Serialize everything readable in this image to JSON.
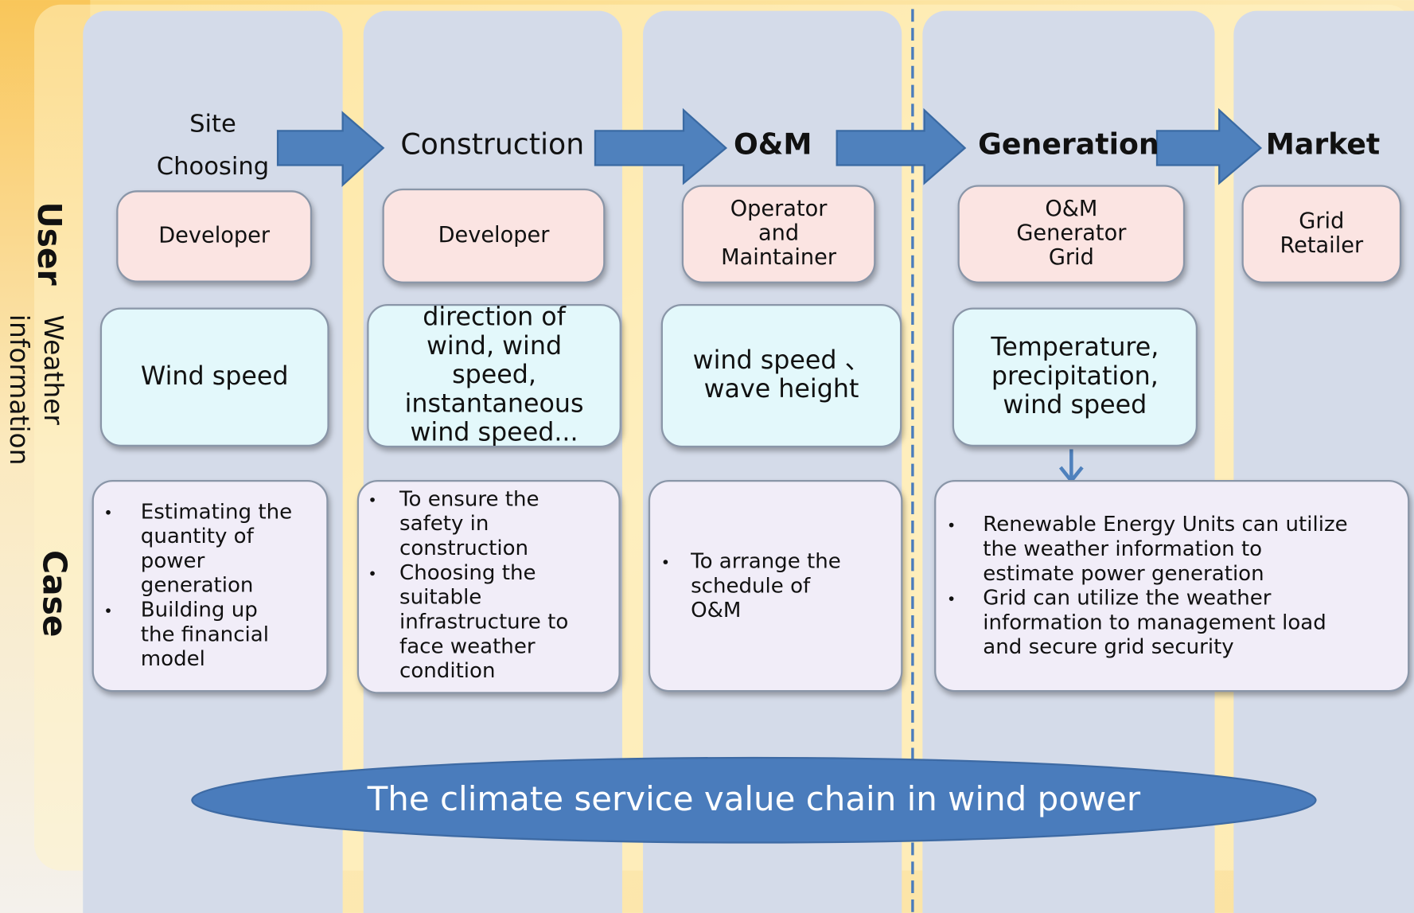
{
  "row_labels": {
    "user": "User",
    "weather": [
      "Weather",
      "information"
    ],
    "case": "Case"
  },
  "stages": [
    [
      "Site",
      "Choosing"
    ],
    [
      "Construction"
    ],
    [
      "O&M"
    ],
    [
      "Generation"
    ],
    [
      "Market"
    ]
  ],
  "users": [
    [
      "Developer"
    ],
    [
      "Developer"
    ],
    [
      "Operator",
      "and",
      "Maintainer"
    ],
    [
      "O&M",
      "Generator",
      "Grid"
    ],
    [
      "Grid",
      "Retailer"
    ]
  ],
  "weather": [
    [
      "Wind speed"
    ],
    [
      "direction of",
      "wind, wind",
      "speed,",
      "instantaneous",
      "wind speed..."
    ],
    [
      "wind speed 、",
      "wave height"
    ],
    [
      "Temperature,",
      "precipitation,",
      "wind speed"
    ]
  ],
  "cases": [
    [
      [
        "Estimating the",
        "quantity of",
        "power",
        "generation"
      ],
      [
        "Building up",
        "the financial",
        "model"
      ]
    ],
    [
      [
        "To ensure the",
        "safety in",
        "construction"
      ],
      [
        "Choosing the",
        "suitable",
        "infrastructure to",
        "face weather",
        "condition"
      ]
    ],
    [
      [
        "To arrange the",
        "schedule of",
        "O&M"
      ]
    ],
    [
      [
        "Renewable Energy Units can utilize",
        "the weather information to",
        "estimate power generation"
      ],
      [
        "Grid can  utilize the weather",
        "information to management load",
        "and secure grid security"
      ]
    ]
  ],
  "footer": "The climate service value chain in wind power"
}
